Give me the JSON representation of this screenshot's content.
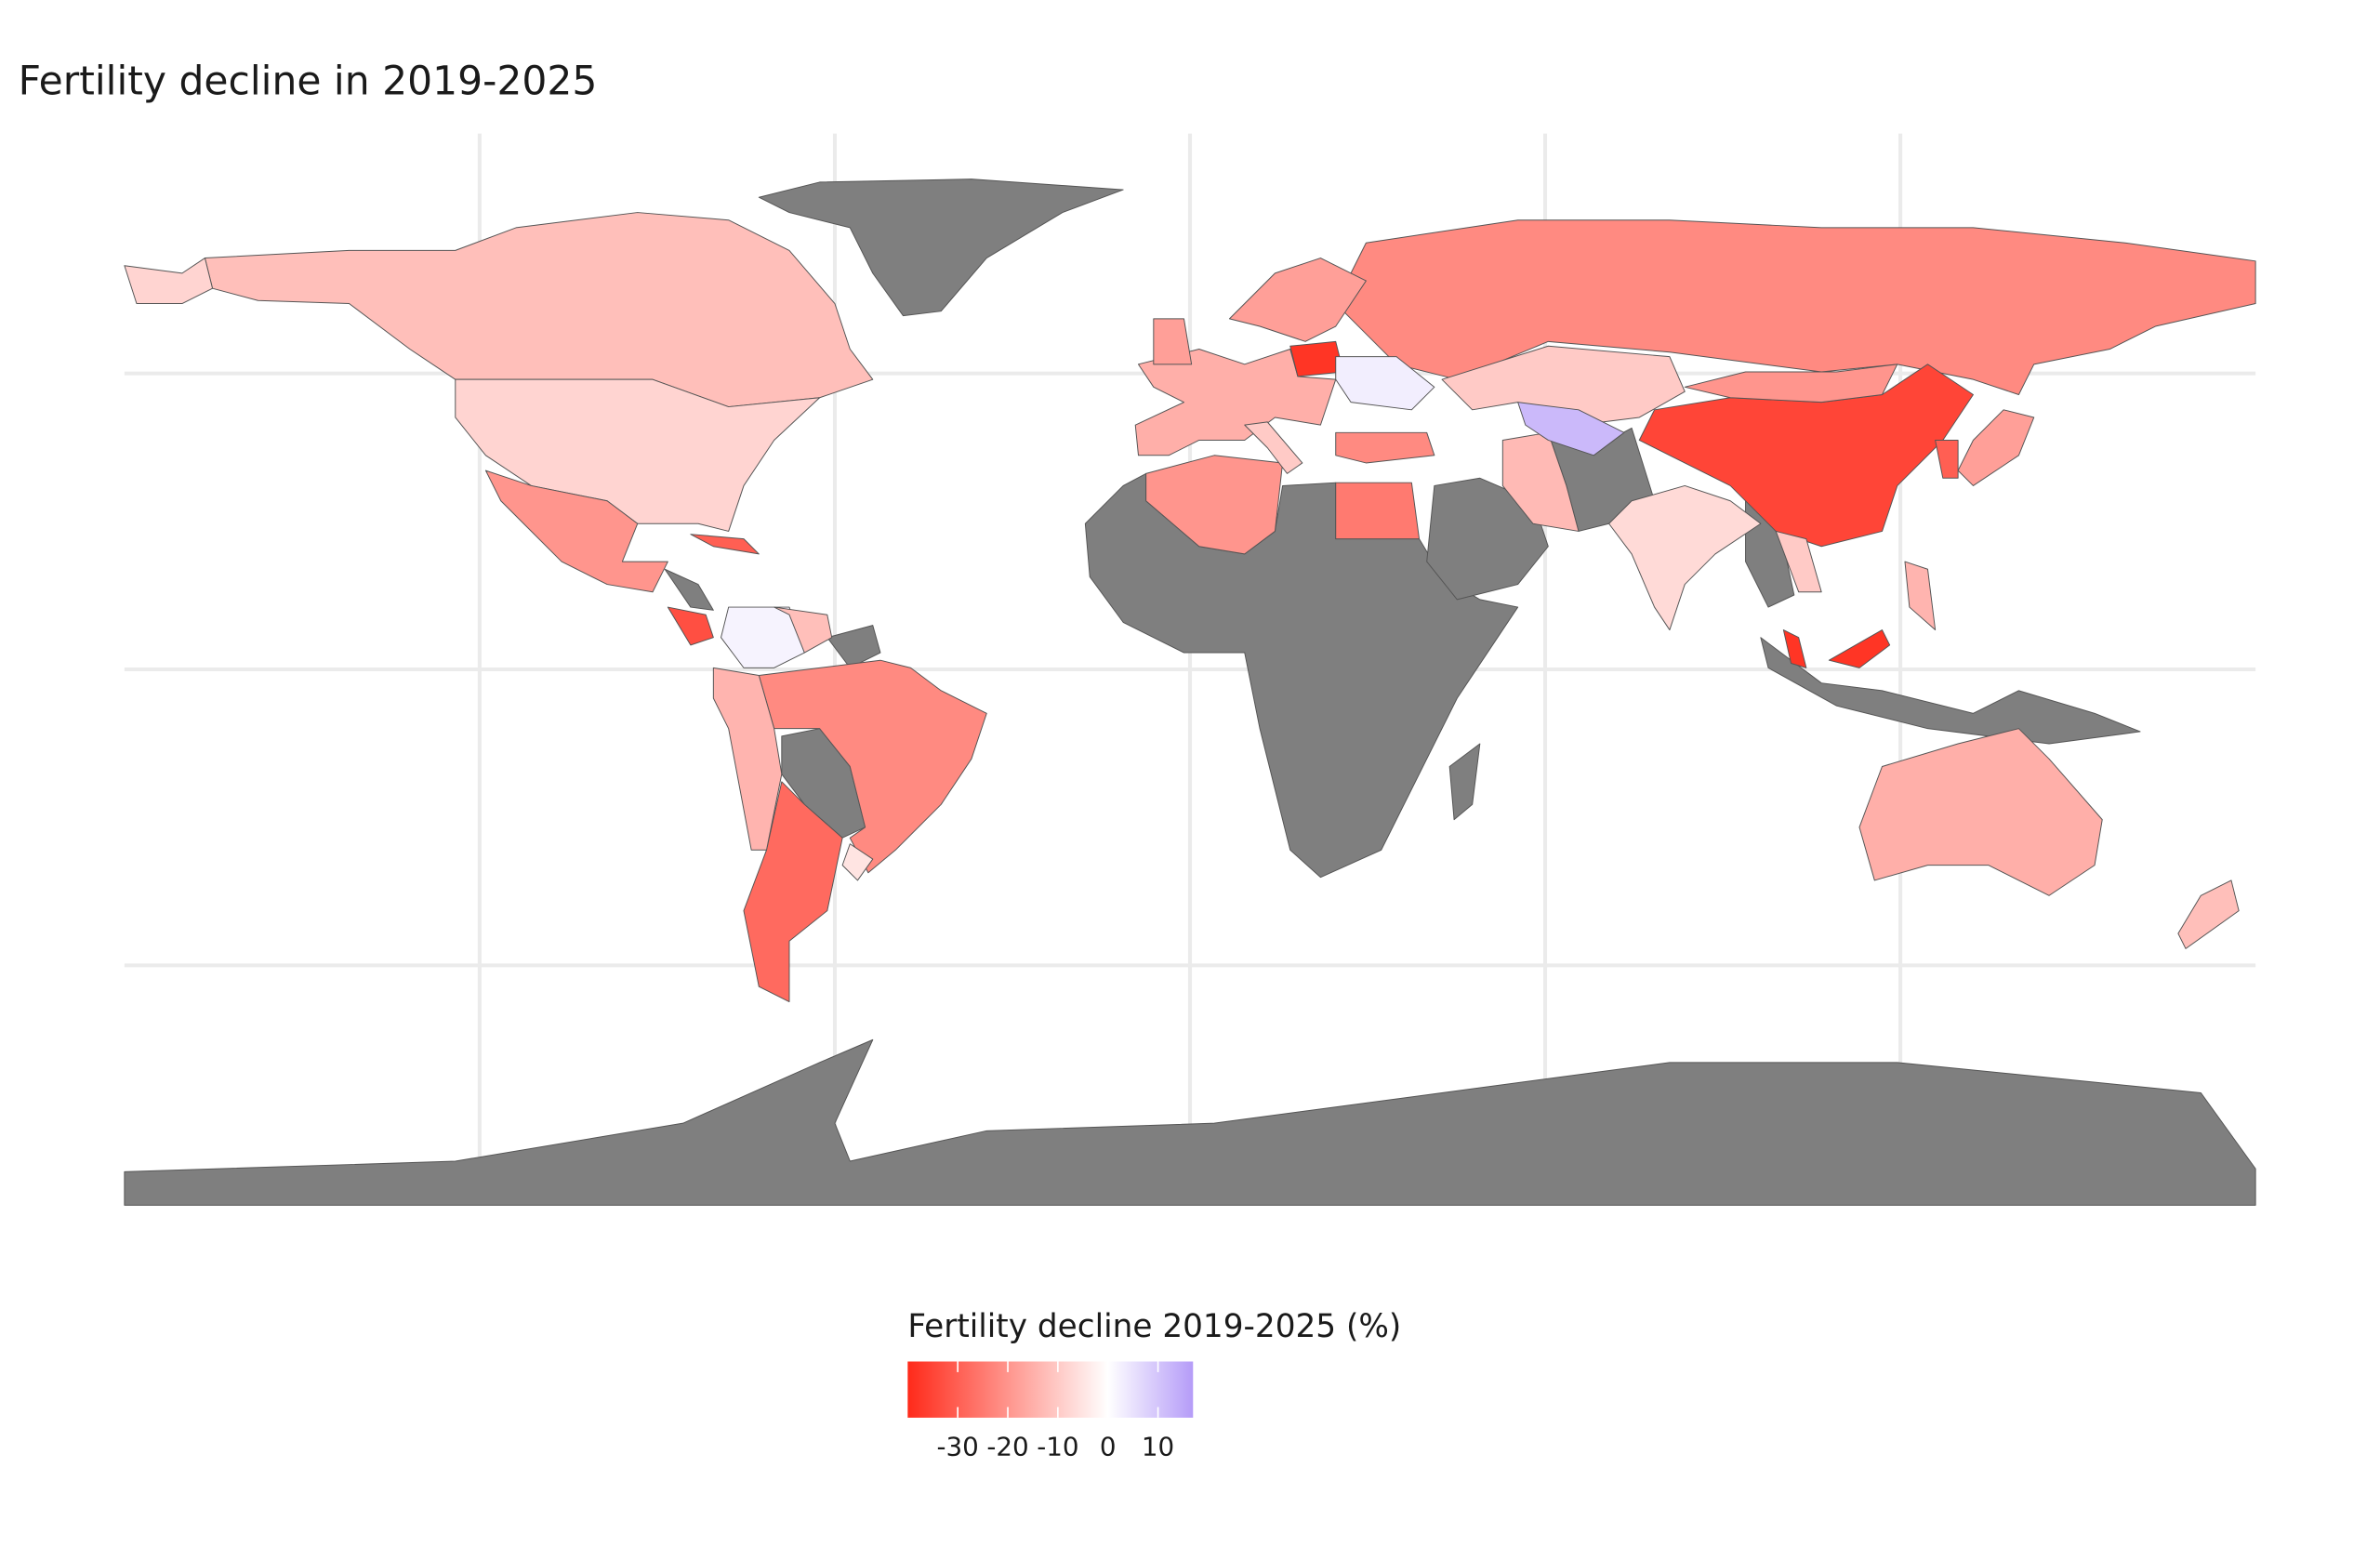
{
  "chart_data": {
    "type": "choropleth",
    "title": "Fertility decline in 2019-2025",
    "legend_title": "Fertility decline 2019-2025 (%)",
    "values": [
      -12,
      -8,
      -20,
      -22,
      -28,
      2,
      -14,
      -12,
      -5,
      -22,
      -10,
      -35,
      -20,
      -7,
      -13,
      12,
      -22,
      -25,
      -20,
      -15,
      -38,
      3,
      -18,
      -10,
      -15,
      -12,
      -18,
      -30,
      -38,
      -10,
      -14,
      -33,
      -30,
      -18
    ],
    "colorbar_lim": [
      -40,
      17
    ],
    "colorbar_ticks": [
      -30,
      -20,
      -10,
      0,
      10
    ],
    "low_color": "#ff2a1a",
    "mid_color": "#ffffff",
    "high_color": "#b59cf8",
    "nodata_color": "#7f7f7f"
  }
}
